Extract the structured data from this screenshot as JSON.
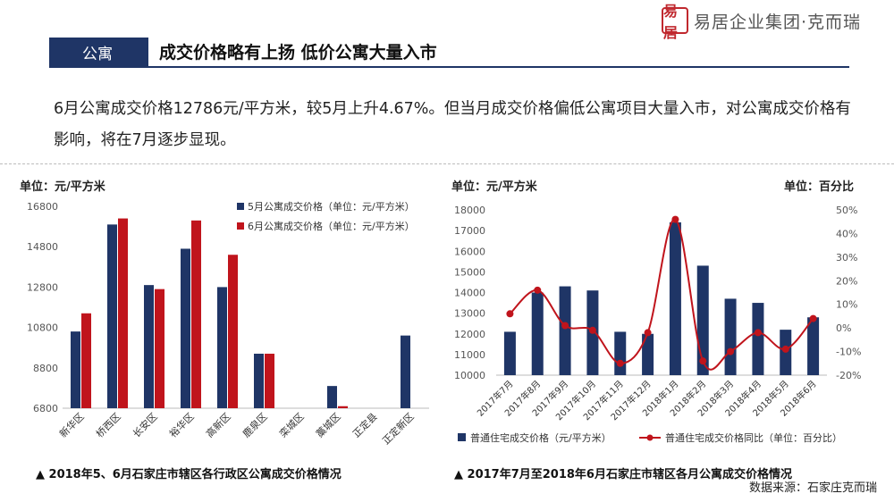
{
  "brand": {
    "logo_text": "易居",
    "name": "易居企业集团·克而瑞"
  },
  "section": {
    "tag": "公寓",
    "headline": "成交价格略有上扬 低价公寓大量入市"
  },
  "intro": "6月公寓成交价格12786元/平方米，较5月上升4.67%。但当月成交价格偏低公寓项目大量入市，对公寓成交价格有影响，将在7月逐步显现。",
  "source": "数据来源：石家庄克而瑞",
  "chart_data": [
    {
      "type": "bar",
      "unit_label": "单位：元/平方米",
      "caption": "▲ 2018年5、6月石家庄市辖区各行政区公寓成交价格情况",
      "categories": [
        "新华区",
        "桥西区",
        "长安区",
        "裕华区",
        "高新区",
        "鹿泉区",
        "栾城区",
        "藁城区",
        "正定县",
        "正定新区"
      ],
      "series": [
        {
          "name": "5月公寓成交价格（单位：元/平方米）",
          "color": "#1f3566",
          "values": [
            10600,
            15900,
            12900,
            14700,
            12800,
            9500,
            null,
            7900,
            null,
            10400
          ]
        },
        {
          "name": "6月公寓成交价格（单位：元/平方米）",
          "color": "#c0141c",
          "values": [
            11500,
            16200,
            12700,
            16100,
            14400,
            9500,
            null,
            6900,
            null,
            null
          ]
        }
      ],
      "ylim": [
        6800,
        16800
      ],
      "yticks": [
        6800,
        8800,
        10800,
        12800,
        14800,
        16800
      ],
      "legend_position": "top-right"
    },
    {
      "type": "bar+line",
      "unit_label_left": "单位：元/平方米",
      "unit_label_right": "单位：百分比",
      "caption": "▲ 2017年7月至2018年6月石家庄市辖区各月公寓成交价格情况",
      "categories": [
        "2017年7月",
        "2017年8月",
        "2017年9月",
        "2017年10月",
        "2017年11月",
        "2017年12月",
        "2018年1月",
        "2018年2月",
        "2018年3月",
        "2018年4月",
        "2018年5月",
        "2018年6月"
      ],
      "bar_series": {
        "name": "普通住宅成交价格（元/平方米）",
        "color": "#1f3566",
        "values": [
          12100,
          14000,
          14300,
          14100,
          12100,
          12000,
          17400,
          15300,
          13700,
          13500,
          12200,
          12800
        ]
      },
      "line_series": {
        "name": "普通住宅成交价格同比（单位：百分比）",
        "color": "#c0141c",
        "values": [
          6,
          16,
          1,
          -1,
          -15,
          -2,
          46,
          -14,
          -10,
          -2,
          -9,
          4
        ]
      },
      "ylim_left": [
        10000,
        18000
      ],
      "yticks_left": [
        10000,
        11000,
        12000,
        13000,
        14000,
        15000,
        16000,
        17000,
        18000
      ],
      "ylim_right": [
        -20,
        50
      ],
      "yticks_right": [
        -20,
        -10,
        0,
        10,
        20,
        30,
        40,
        50
      ],
      "legend_position": "bottom"
    }
  ]
}
